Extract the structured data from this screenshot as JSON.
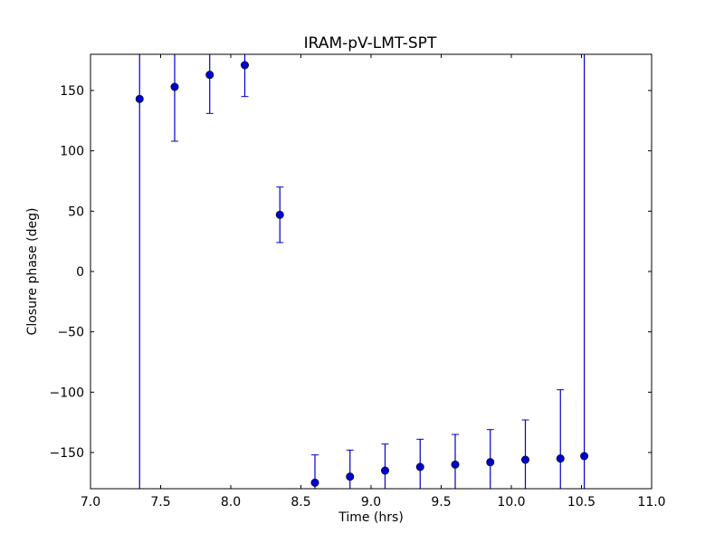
{
  "chart_data": {
    "type": "scatter",
    "title": "IRAM-pV-LMT-SPT",
    "xlabel": "Time (hrs)",
    "ylabel": "Closure phase (deg)",
    "xlim": [
      7.0,
      11.0
    ],
    "ylim": [
      -180,
      180
    ],
    "xticks": [
      7.0,
      7.5,
      8.0,
      8.5,
      9.0,
      9.5,
      10.0,
      10.5,
      11.0
    ],
    "xtick_labels": [
      "7.0",
      "7.5",
      "8.0",
      "8.5",
      "9.0",
      "9.5",
      "10.0",
      "10.5",
      "11.0"
    ],
    "yticks": [
      150,
      100,
      50,
      0,
      -50,
      -100,
      -150
    ],
    "ytick_labels": [
      "150",
      "100",
      "50",
      "0",
      "−50",
      "−100",
      "−150"
    ],
    "grid": false,
    "marker_color": "#0000cc",
    "errorbar_color": "#0000cc",
    "points": [
      {
        "x": 7.35,
        "y": 143,
        "yerr_low": -180,
        "yerr_high": 180
      },
      {
        "x": 7.6,
        "y": 153,
        "yerr_low": 108,
        "yerr_high": 180
      },
      {
        "x": 7.85,
        "y": 163,
        "yerr_low": 131,
        "yerr_high": 180
      },
      {
        "x": 8.1,
        "y": 171,
        "yerr_low": 145,
        "yerr_high": 180
      },
      {
        "x": 8.35,
        "y": 47,
        "yerr_low": 24,
        "yerr_high": 70
      },
      {
        "x": 8.6,
        "y": -175,
        "yerr_low": -180,
        "yerr_high": -152
      },
      {
        "x": 8.85,
        "y": -170,
        "yerr_low": -180,
        "yerr_high": -148
      },
      {
        "x": 9.1,
        "y": -165,
        "yerr_low": -180,
        "yerr_high": -143
      },
      {
        "x": 9.35,
        "y": -162,
        "yerr_low": -180,
        "yerr_high": -139
      },
      {
        "x": 9.6,
        "y": -160,
        "yerr_low": -180,
        "yerr_high": -135
      },
      {
        "x": 9.85,
        "y": -158,
        "yerr_low": -180,
        "yerr_high": -131
      },
      {
        "x": 10.1,
        "y": -156,
        "yerr_low": -180,
        "yerr_high": -123
      },
      {
        "x": 10.35,
        "y": -155,
        "yerr_low": -180,
        "yerr_high": -98
      },
      {
        "x": 10.52,
        "y": -153,
        "yerr_low": -180,
        "yerr_high": 180
      }
    ]
  }
}
